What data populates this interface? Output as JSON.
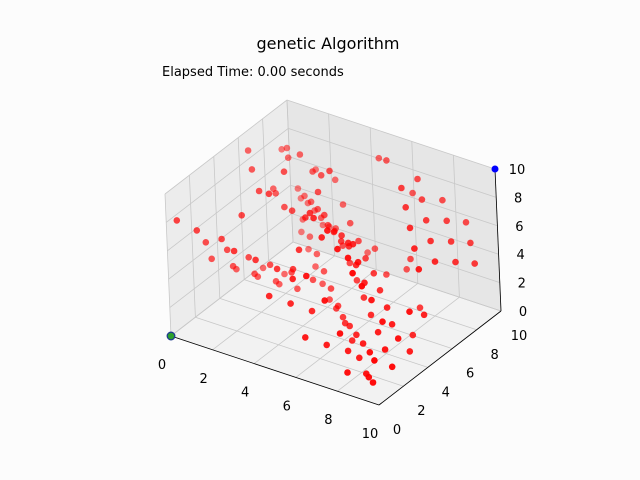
{
  "chart_data": {
    "type": "scatter",
    "projection": "3d",
    "title": "genetic Algorithm",
    "annotation": "Elapsed Time: 0.00 seconds",
    "xlim": [
      0,
      10
    ],
    "ylim": [
      0,
      10
    ],
    "zlim": [
      0,
      10
    ],
    "x_ticks": [
      "0",
      "2",
      "4",
      "6",
      "8",
      "10"
    ],
    "y_ticks": [
      "0",
      "2",
      "4",
      "6",
      "8",
      "10"
    ],
    "z_ticks": [
      "0",
      "2",
      "4",
      "6",
      "8",
      "10"
    ],
    "grid": true,
    "colors": {
      "population": "#ff0000",
      "target": "#0000ff",
      "start_fill": "#2ca02c",
      "start_edge": "#1f3b8f"
    },
    "series": [
      {
        "role": "population",
        "points": [
          [
            0.5,
            8.6,
            7.7
          ],
          [
            1.0,
            8.2,
            8.3
          ],
          [
            1.6,
            7.3,
            8.5
          ],
          [
            2.3,
            7.1,
            9.2
          ],
          [
            2.7,
            7.4,
            8.0
          ],
          [
            3.6,
            6.6,
            8.7
          ],
          [
            4.2,
            6.3,
            9.5
          ],
          [
            3.9,
            5.8,
            8.2
          ],
          [
            2.9,
            4.8,
            9.8
          ],
          [
            1.3,
            6.5,
            6.7
          ],
          [
            1.9,
            5.7,
            7.2
          ],
          [
            2.6,
            5.2,
            6.9
          ],
          [
            3.4,
            4.5,
            7.5
          ],
          [
            4.4,
            3.9,
            7.9
          ],
          [
            5.0,
            3.3,
            8.9
          ],
          [
            5.6,
            2.6,
            9.3
          ],
          [
            6.2,
            2.2,
            8.5
          ],
          [
            6.8,
            1.7,
            9.6
          ],
          [
            7.5,
            1.3,
            8.9
          ],
          [
            8.3,
            0.8,
            9.0
          ],
          [
            8.8,
            0.3,
            8.5
          ],
          [
            9.1,
            0.5,
            7.6
          ],
          [
            7.8,
            2.4,
            7.4
          ],
          [
            7.1,
            3.2,
            7.8
          ],
          [
            6.5,
            3.8,
            7.2
          ],
          [
            5.7,
            4.6,
            6.8
          ],
          [
            4.9,
            5.3,
            6.2
          ],
          [
            4.1,
            5.9,
            6.6
          ],
          [
            3.3,
            6.7,
            6.1
          ],
          [
            2.5,
            7.5,
            5.7
          ],
          [
            1.7,
            8.3,
            5.2
          ],
          [
            0.9,
            9.1,
            4.8
          ],
          [
            1.5,
            9.6,
            6.1
          ],
          [
            2.8,
            9.0,
            6.4
          ],
          [
            3.5,
            8.4,
            5.4
          ],
          [
            4.3,
            7.6,
            5.0
          ],
          [
            5.1,
            6.9,
            4.6
          ],
          [
            5.9,
            6.1,
            4.3
          ],
          [
            6.7,
            5.4,
            4.1
          ],
          [
            7.4,
            4.7,
            3.7
          ],
          [
            8.2,
            3.9,
            3.4
          ],
          [
            8.9,
            3.1,
            3.1
          ],
          [
            9.6,
            2.4,
            2.9
          ],
          [
            9.3,
            1.7,
            4.4
          ],
          [
            8.5,
            2.2,
            5.2
          ],
          [
            7.7,
            3.0,
            5.5
          ],
          [
            6.9,
            3.7,
            5.9
          ],
          [
            6.1,
            4.5,
            6.3
          ],
          [
            5.3,
            5.2,
            5.8
          ],
          [
            4.5,
            6.0,
            5.6
          ],
          [
            3.7,
            6.8,
            5.1
          ],
          [
            2.9,
            7.6,
            4.7
          ],
          [
            2.1,
            8.4,
            4.3
          ],
          [
            1.3,
            9.2,
            3.9
          ],
          [
            0.6,
            9.8,
            3.5
          ],
          [
            1.2,
            8.9,
            2.9
          ],
          [
            2.0,
            8.1,
            2.6
          ],
          [
            2.8,
            7.3,
            2.3
          ],
          [
            3.6,
            6.5,
            2.0
          ],
          [
            4.4,
            5.7,
            1.7
          ],
          [
            5.2,
            4.9,
            1.4
          ],
          [
            6.0,
            4.1,
            1.1
          ],
          [
            6.8,
            3.3,
            0.8
          ],
          [
            7.6,
            2.5,
            0.5
          ],
          [
            8.4,
            1.7,
            0.3
          ],
          [
            9.2,
            0.9,
            0.6
          ],
          [
            9.8,
            1.5,
            1.6
          ],
          [
            9.0,
            2.3,
            1.9
          ],
          [
            8.2,
            3.1,
            2.2
          ],
          [
            7.4,
            3.9,
            2.5
          ],
          [
            6.6,
            4.7,
            2.8
          ],
          [
            5.8,
            5.5,
            3.1
          ],
          [
            5.0,
            6.3,
            3.4
          ],
          [
            4.2,
            7.1,
            3.7
          ],
          [
            3.4,
            7.9,
            4.0
          ],
          [
            2.6,
            8.7,
            3.2
          ],
          [
            1.8,
            9.5,
            2.4
          ],
          [
            0.8,
            9.4,
            1.5
          ],
          [
            1.6,
            8.6,
            1.2
          ],
          [
            2.4,
            7.8,
            0.9
          ],
          [
            3.2,
            7.0,
            0.6
          ],
          [
            4.0,
            6.2,
            0.4
          ],
          [
            4.8,
            5.4,
            0.7
          ],
          [
            5.6,
            4.6,
            1.0
          ],
          [
            6.4,
            3.8,
            1.3
          ],
          [
            7.2,
            3.0,
            1.6
          ],
          [
            8.0,
            2.2,
            1.9
          ],
          [
            8.8,
            1.4,
            2.2
          ],
          [
            9.5,
            0.6,
            2.5
          ],
          [
            0.4,
            0.2,
            8.2
          ],
          [
            0.8,
            1.1,
            7.1
          ],
          [
            1.5,
            1.9,
            6.3
          ],
          [
            2.1,
            2.6,
            7.8
          ],
          [
            2.7,
            0.9,
            6.7
          ],
          [
            3.3,
            1.6,
            5.9
          ],
          [
            3.9,
            2.3,
            5.1
          ],
          [
            4.5,
            0.6,
            4.6
          ],
          [
            5.1,
            1.3,
            3.9
          ],
          [
            5.7,
            2.0,
            3.2
          ],
          [
            6.3,
            0.4,
            2.7
          ],
          [
            6.9,
            1.1,
            2.0
          ],
          [
            7.5,
            1.8,
            1.4
          ],
          [
            8.1,
            0.7,
            0.9
          ],
          [
            8.7,
            1.4,
            0.4
          ],
          [
            0.6,
            2.1,
            5.5
          ],
          [
            1.2,
            2.8,
            4.8
          ],
          [
            1.8,
            3.5,
            4.1
          ],
          [
            2.4,
            4.2,
            3.4
          ],
          [
            3.0,
            4.9,
            2.7
          ],
          [
            3.6,
            5.6,
            2.0
          ],
          [
            0.3,
            3.0,
            3.6
          ],
          [
            0.9,
            3.7,
            2.9
          ],
          [
            1.5,
            4.4,
            2.2
          ],
          [
            2.1,
            5.1,
            1.5
          ],
          [
            2.7,
            5.8,
            0.8
          ],
          [
            0.5,
            4.6,
            1.9
          ],
          [
            1.1,
            5.3,
            1.2
          ],
          [
            1.7,
            6.0,
            0.5
          ],
          [
            0.7,
            6.4,
            0.9
          ],
          [
            1.3,
            7.1,
            0.3
          ],
          [
            9.7,
            4.1,
            6.7
          ],
          [
            9.1,
            4.8,
            7.4
          ],
          [
            8.5,
            5.5,
            8.1
          ],
          [
            7.9,
            6.2,
            8.8
          ],
          [
            7.3,
            6.9,
            9.4
          ],
          [
            9.4,
            5.9,
            5.9
          ],
          [
            8.8,
            6.6,
            6.6
          ],
          [
            8.2,
            7.3,
            7.3
          ],
          [
            7.6,
            8.0,
            8.0
          ],
          [
            7.0,
            8.7,
            8.7
          ],
          [
            9.6,
            7.2,
            5.1
          ],
          [
            9.0,
            7.9,
            5.8
          ],
          [
            8.4,
            8.6,
            6.5
          ],
          [
            7.8,
            9.3,
            7.2
          ],
          [
            9.8,
            8.4,
            4.3
          ],
          [
            9.2,
            9.1,
            5.0
          ],
          [
            8.6,
            9.8,
            5.7
          ],
          [
            5.4,
            8.9,
            9.1
          ],
          [
            4.6,
            9.6,
            8.4
          ],
          [
            6.3,
            9.4,
            6.9
          ],
          [
            3.1,
            3.2,
            9.4
          ],
          [
            4.7,
            2.8,
            6.5
          ],
          [
            5.9,
            7.7,
            2.1
          ],
          [
            6.8,
            8.2,
            3.3
          ],
          [
            7.9,
            7.0,
            1.2
          ],
          [
            8.6,
            5.2,
            0.8
          ],
          [
            9.4,
            3.6,
            1.1
          ],
          [
            6.1,
            9.0,
            1.7
          ],
          [
            4.9,
            8.5,
            2.9
          ],
          [
            3.8,
            9.7,
            1.3
          ],
          [
            2.2,
            3.9,
            8.7
          ],
          [
            1.4,
            4.7,
            9.3
          ],
          [
            0.7,
            5.6,
            9.7
          ],
          [
            5.5,
            0.9,
            6.1
          ],
          [
            6.6,
            0.2,
            7.3
          ],
          [
            7.2,
            0.6,
            5.6
          ],
          [
            8.0,
            0.4,
            3.8
          ],
          [
            9.9,
            2.9,
            4.6
          ],
          [
            9.5,
            4.7,
            3.0
          ],
          [
            4.0,
            3.4,
            4.4
          ]
        ]
      },
      {
        "role": "target",
        "points": [
          [
            10.0,
            10.0,
            10.0
          ]
        ]
      },
      {
        "role": "start",
        "points": [
          [
            0.0,
            0.0,
            0.0
          ]
        ]
      }
    ]
  }
}
